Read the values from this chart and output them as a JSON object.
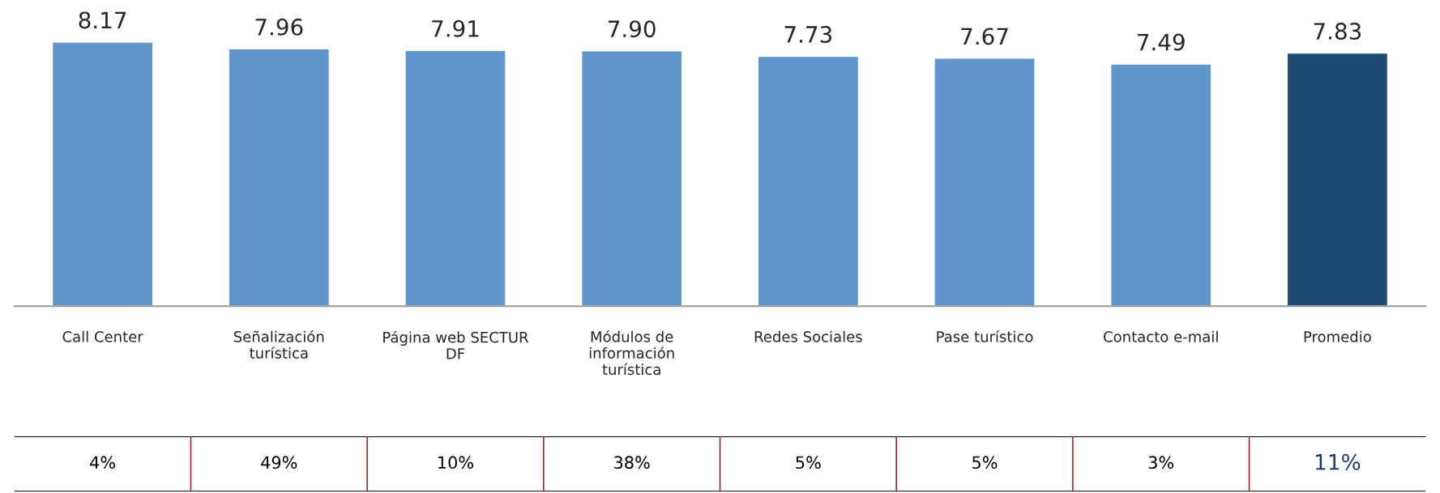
{
  "chart_data": {
    "type": "bar",
    "categories": [
      "Call Center",
      "Señalización\nturística",
      "Página web SECTUR\nDF",
      "Módulos de\ninformación\nturística",
      "Redes Sociales",
      "Pase turístico",
      "Contacto e-mail",
      "Promedio"
    ],
    "values": [
      8.17,
      7.96,
      7.91,
      7.9,
      7.73,
      7.67,
      7.49,
      7.83
    ],
    "value_labels": [
      "8.17",
      "7.96",
      "7.91",
      "7.90",
      "7.73",
      "7.67",
      "7.49",
      "7.83"
    ],
    "colors": [
      "#6096c9",
      "#6096c9",
      "#6096c9",
      "#6096c9",
      "#6096c9",
      "#6096c9",
      "#6096c9",
      "#1f4a73"
    ],
    "grid": false,
    "legend": false,
    "annotations": [
      "4%",
      "49%",
      "10%",
      "38%",
      "5%",
      "5%",
      "3%",
      "11%"
    ]
  }
}
